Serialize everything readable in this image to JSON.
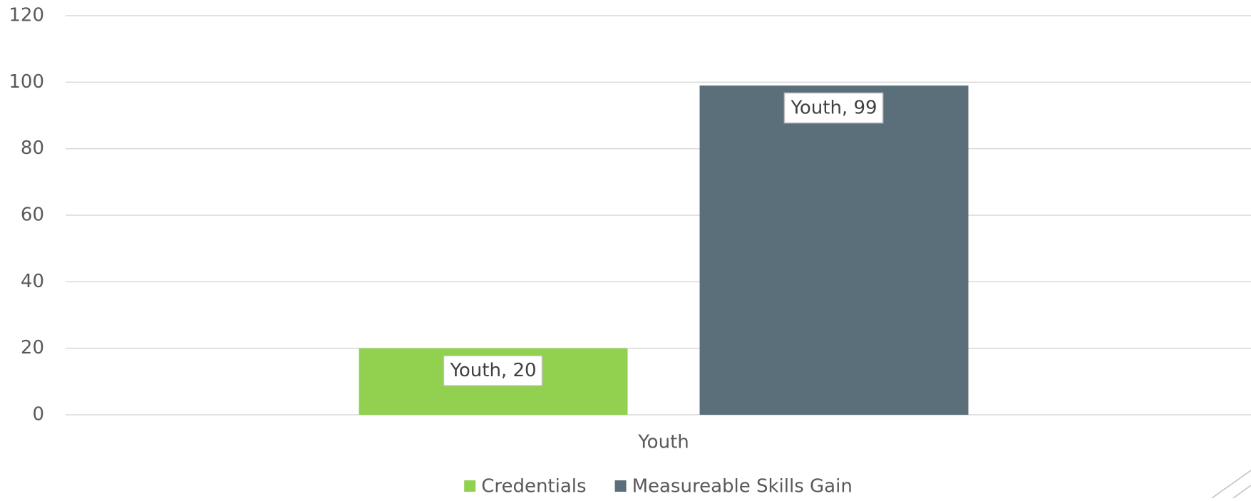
{
  "chart_data": {
    "type": "bar",
    "categories": [
      "Youth"
    ],
    "series": [
      {
        "name": "Credentials",
        "color": "#92d050",
        "values": [
          20
        ],
        "value_labels": [
          "Youth, 20"
        ]
      },
      {
        "name": "Measureable Skills Gain",
        "color": "#5b6f7a",
        "values": [
          99
        ],
        "value_labels": [
          "Youth, 99"
        ]
      }
    ],
    "ylim": [
      0,
      120
    ],
    "yticks": [
      0,
      20,
      40,
      60,
      80,
      100,
      120
    ],
    "grid": true,
    "legend": "bottom"
  }
}
